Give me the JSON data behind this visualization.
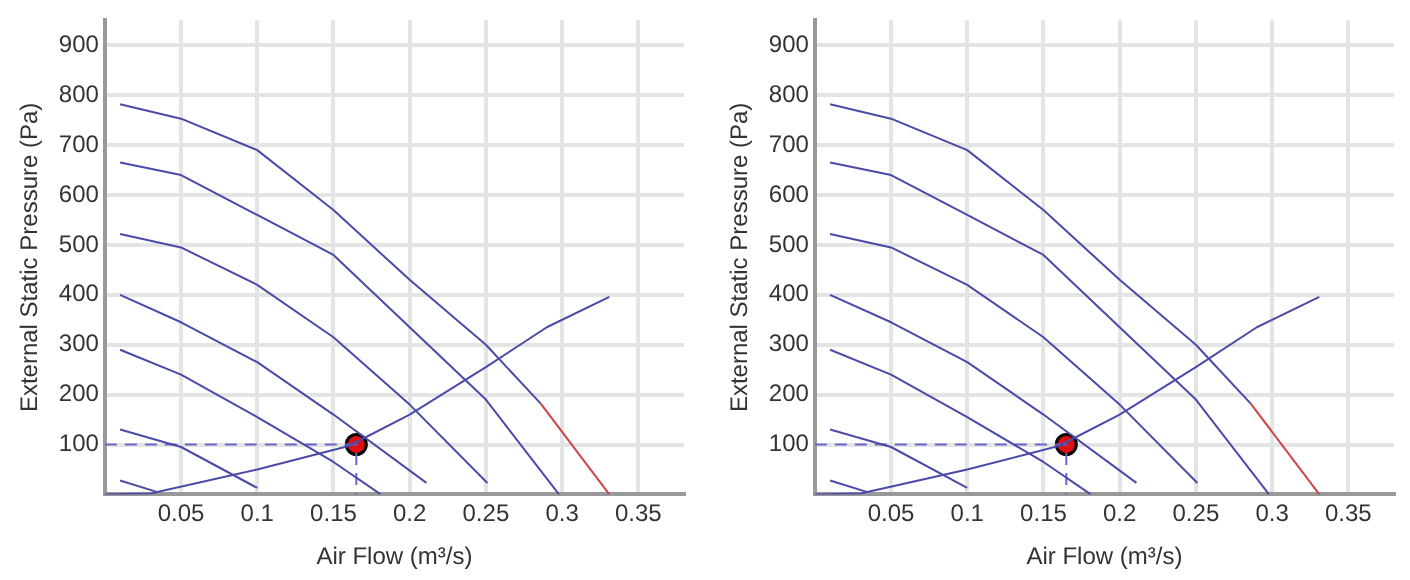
{
  "chart_data": [
    {
      "type": "line",
      "xlabel": "Air Flow (m³/s)",
      "ylabel": "External Static Pressure (Pa)",
      "xlim": [
        0,
        0.38
      ],
      "ylim": [
        0,
        950
      ],
      "xticks": [
        0.05,
        0.1,
        0.15,
        0.2,
        0.25,
        0.3,
        0.35
      ],
      "yticks": [
        100,
        200,
        300,
        400,
        500,
        600,
        700,
        800,
        900
      ],
      "grid": true,
      "legend": false,
      "marker": "none",
      "line_style": "solid",
      "series": [
        {
          "color": "#4a4aa8",
          "x": [
            0.01,
            0.05,
            0.1,
            0.15,
            0.2,
            0.25,
            0.286
          ],
          "values": [
            782,
            753,
            690,
            570,
            430,
            300,
            182
          ]
        },
        {
          "color": "#cc4444",
          "x": [
            0.286,
            0.331
          ],
          "values": [
            182,
            0
          ]
        },
        {
          "color": "#4a4aa8",
          "x": [
            0.01,
            0.05,
            0.1,
            0.15,
            0.2,
            0.25,
            0.298
          ],
          "values": [
            665,
            640,
            560,
            480,
            335,
            190,
            0
          ]
        },
        {
          "color": "#4a4aa8",
          "x": [
            0.01,
            0.05,
            0.1,
            0.15,
            0.2,
            0.251
          ],
          "values": [
            522,
            495,
            420,
            315,
            180,
            23
          ]
        },
        {
          "color": "#4a4aa8",
          "x": [
            0.01,
            0.05,
            0.1,
            0.15,
            0.211
          ],
          "values": [
            400,
            345,
            265,
            160,
            23
          ]
        },
        {
          "color": "#4a4aa8",
          "x": [
            0.01,
            0.05,
            0.1,
            0.15,
            0.181
          ],
          "values": [
            290,
            240,
            155,
            65,
            0
          ]
        },
        {
          "color": "#4a4aa8",
          "x": [
            0.01,
            0.05,
            0.1
          ],
          "values": [
            130,
            95,
            13
          ]
        },
        {
          "color": "#4a4aa8",
          "x": [
            0.01,
            0.034
          ],
          "values": [
            28,
            5
          ]
        },
        {
          "color": "#4a4aa8",
          "x": [
            0,
            0.03,
            0.1,
            0.16,
            0.2,
            0.25,
            0.29,
            0.331
          ],
          "values": [
            0,
            2,
            50,
            97,
            160,
            255,
            335,
            396
          ]
        },
        {
          "color": "#6666cc",
          "line_style": "dashed",
          "x": [
            0,
            0.165,
            0.165
          ],
          "values": [
            100,
            100,
            0
          ]
        },
        {
          "type": "scatter",
          "marker": "circle",
          "color": "#dd1111",
          "x": [
            0.165
          ],
          "values": [
            100
          ]
        }
      ]
    },
    {
      "type": "line",
      "xlabel": "Air Flow (m³/s)",
      "ylabel": "External Static Pressure (Pa)",
      "xlim": [
        0,
        0.38
      ],
      "ylim": [
        0,
        950
      ],
      "xticks": [
        0.05,
        0.1,
        0.15,
        0.2,
        0.25,
        0.3,
        0.35
      ],
      "yticks": [
        100,
        200,
        300,
        400,
        500,
        600,
        700,
        800,
        900
      ],
      "grid": true,
      "legend": false,
      "marker": "none",
      "line_style": "solid",
      "series": [
        {
          "color": "#4a4aa8",
          "x": [
            0.01,
            0.05,
            0.1,
            0.15,
            0.2,
            0.25,
            0.286
          ],
          "values": [
            782,
            753,
            690,
            570,
            430,
            300,
            182
          ]
        },
        {
          "color": "#cc4444",
          "x": [
            0.286,
            0.331
          ],
          "values": [
            182,
            0
          ]
        },
        {
          "color": "#4a4aa8",
          "x": [
            0.01,
            0.05,
            0.1,
            0.15,
            0.2,
            0.25,
            0.298
          ],
          "values": [
            665,
            640,
            560,
            480,
            335,
            190,
            0
          ]
        },
        {
          "color": "#4a4aa8",
          "x": [
            0.01,
            0.05,
            0.1,
            0.15,
            0.2,
            0.251
          ],
          "values": [
            522,
            495,
            420,
            315,
            180,
            23
          ]
        },
        {
          "color": "#4a4aa8",
          "x": [
            0.01,
            0.05,
            0.1,
            0.15,
            0.211
          ],
          "values": [
            400,
            345,
            265,
            160,
            23
          ]
        },
        {
          "color": "#4a4aa8",
          "x": [
            0.01,
            0.05,
            0.1,
            0.15,
            0.181
          ],
          "values": [
            290,
            240,
            155,
            65,
            0
          ]
        },
        {
          "color": "#4a4aa8",
          "x": [
            0.01,
            0.05,
            0.1
          ],
          "values": [
            130,
            95,
            13
          ]
        },
        {
          "color": "#4a4aa8",
          "x": [
            0.01,
            0.034
          ],
          "values": [
            28,
            5
          ]
        },
        {
          "color": "#4a4aa8",
          "x": [
            0,
            0.03,
            0.1,
            0.16,
            0.2,
            0.25,
            0.29,
            0.331
          ],
          "values": [
            0,
            2,
            50,
            97,
            160,
            255,
            335,
            396
          ]
        },
        {
          "color": "#6666cc",
          "line_style": "dashed",
          "x": [
            0,
            0.165,
            0.165
          ],
          "values": [
            100,
            100,
            0
          ]
        },
        {
          "type": "scatter",
          "marker": "circle",
          "color": "#dd1111",
          "x": [
            0.165
          ],
          "values": [
            100
          ]
        }
      ]
    }
  ]
}
